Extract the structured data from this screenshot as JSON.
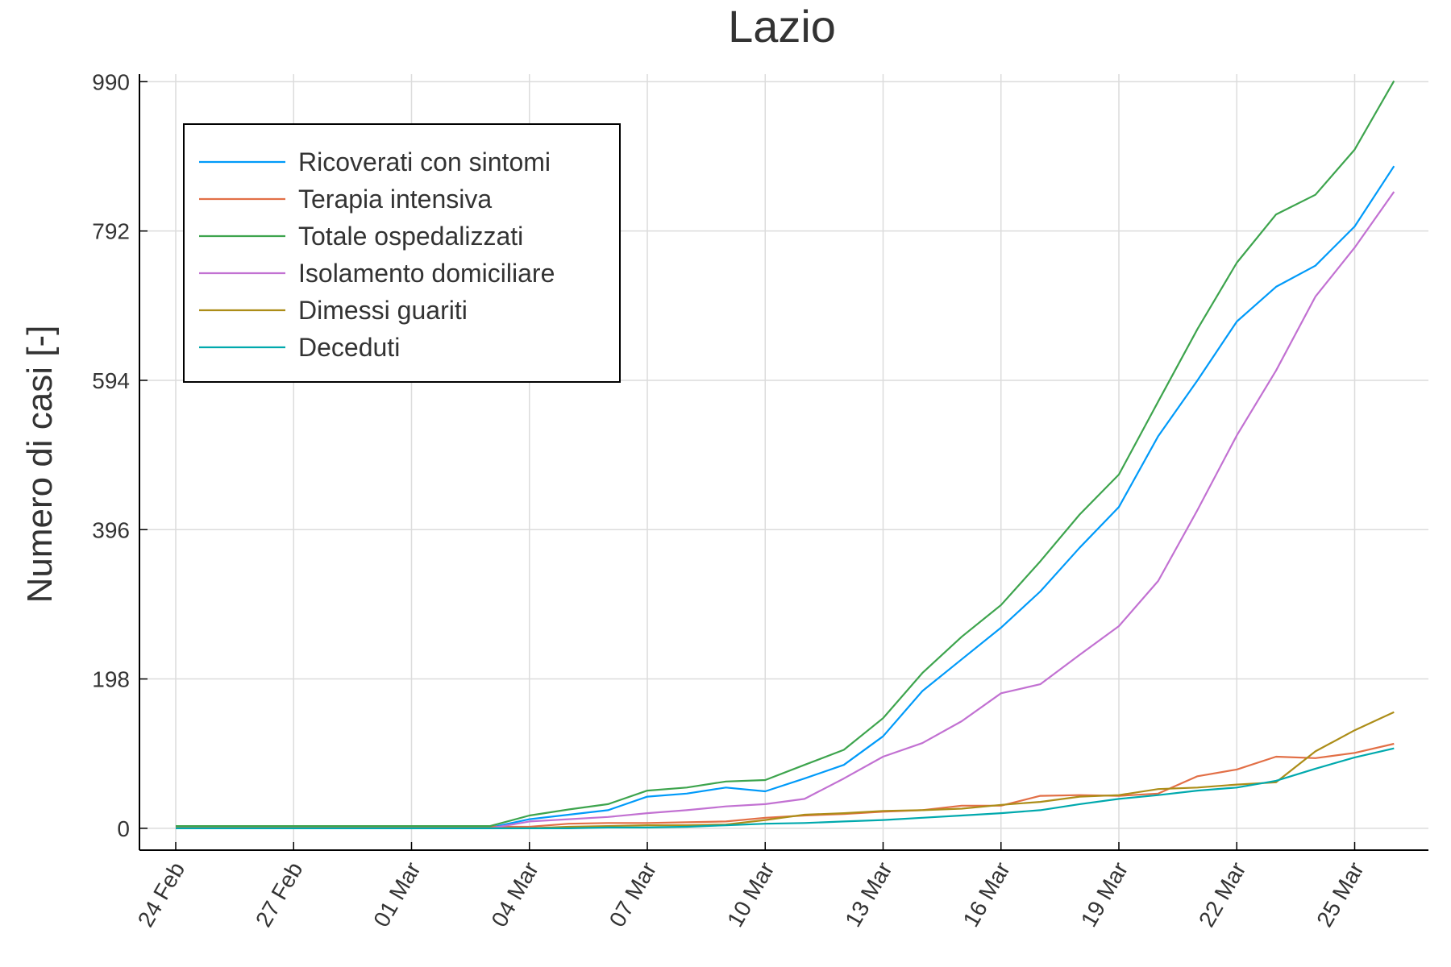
{
  "chart_data": {
    "type": "line",
    "title": "Lazio",
    "xlabel": "",
    "ylabel": "Numero di casi [-]",
    "ylim": [
      -29,
      1000
    ],
    "yticks": [
      0,
      198,
      396,
      594,
      792,
      990
    ],
    "ytick_labels": [
      "0",
      "198",
      "396",
      "594",
      "792",
      "990"
    ],
    "xtick_labels": [
      "24 Feb",
      "27 Feb",
      "01 Mar",
      "04 Mar",
      "07 Mar",
      "10 Mar",
      "13 Mar",
      "16 Mar",
      "19 Mar",
      "22 Mar",
      "25 Mar"
    ],
    "xtick_index": [
      0,
      3,
      6,
      9,
      12,
      15,
      18,
      21,
      24,
      27,
      30
    ],
    "x": [
      "24 Feb",
      "25 Feb",
      "26 Feb",
      "27 Feb",
      "28 Feb",
      "29 Feb",
      "01 Mar",
      "02 Mar",
      "03 Mar",
      "04 Mar",
      "05 Mar",
      "06 Mar",
      "07 Mar",
      "08 Mar",
      "09 Mar",
      "10 Mar",
      "11 Mar",
      "12 Mar",
      "13 Mar",
      "14 Mar",
      "15 Mar",
      "16 Mar",
      "17 Mar",
      "18 Mar",
      "19 Mar",
      "20 Mar",
      "21 Mar",
      "22 Mar",
      "23 Mar",
      "24 Mar",
      "25 Mar",
      "26 Mar"
    ],
    "grid": true,
    "legend": "top-left",
    "series": [
      {
        "name": "Ricoverati con sintomi",
        "color": "#009af9",
        "values": [
          2,
          2,
          1,
          1,
          1,
          1,
          1,
          1,
          1,
          12,
          18,
          24,
          42,
          46,
          54,
          49,
          66,
          84,
          122,
          182,
          224,
          266,
          314,
          372,
          426,
          520,
          594,
          672,
          718,
          746,
          798,
          878
        ]
      },
      {
        "name": "Terapia intensiva",
        "color": "#e26f46",
        "values": [
          1,
          1,
          2,
          2,
          2,
          2,
          2,
          2,
          2,
          2,
          6,
          7,
          7,
          8,
          9,
          14,
          17,
          19,
          22,
          24,
          30,
          30,
          43,
          44,
          43,
          46,
          69,
          78,
          95,
          93,
          100,
          112
        ]
      },
      {
        "name": "Totale ospedalizzati",
        "color": "#3da44d",
        "values": [
          3,
          3,
          3,
          3,
          3,
          3,
          3,
          3,
          3,
          17,
          25,
          32,
          50,
          54,
          62,
          64,
          84,
          104,
          146,
          206,
          254,
          296,
          354,
          416,
          469,
          566,
          662,
          750,
          814,
          840,
          900,
          991
        ]
      },
      {
        "name": "Isolamento domiciliare",
        "color": "#c271d2",
        "values": [
          0,
          0,
          0,
          0,
          0,
          0,
          0,
          0,
          0,
          9,
          12,
          15,
          20,
          24,
          29,
          32,
          39,
          66,
          95,
          113,
          142,
          179,
          191,
          230,
          268,
          328,
          422,
          521,
          607,
          705,
          770,
          844
        ]
      },
      {
        "name": "Dimessi guariti",
        "color": "#ac8d18",
        "values": [
          0,
          0,
          0,
          0,
          0,
          0,
          0,
          0,
          0,
          0,
          2,
          3,
          4,
          4,
          5,
          11,
          18,
          20,
          23,
          24,
          26,
          31,
          35,
          42,
          44,
          52,
          54,
          58,
          61,
          102,
          130,
          154
        ]
      },
      {
        "name": "Deceduti",
        "color": "#00a9ad",
        "values": [
          0,
          0,
          0,
          0,
          0,
          0,
          0,
          0,
          0,
          0,
          0,
          1,
          1,
          2,
          4,
          6,
          7,
          9,
          11,
          14,
          17,
          20,
          24,
          32,
          39,
          44,
          50,
          54,
          63,
          79,
          94,
          106
        ]
      }
    ]
  }
}
